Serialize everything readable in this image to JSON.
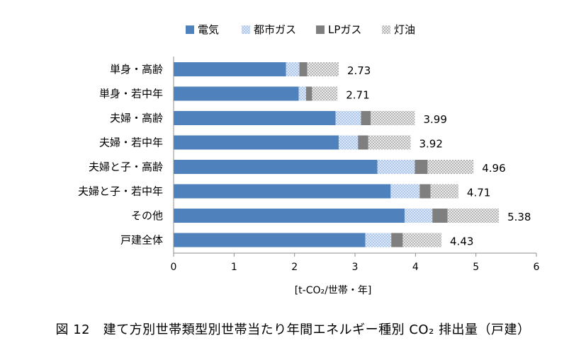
{
  "chart_data": {
    "type": "bar",
    "orientation": "horizontal",
    "stacked": true,
    "categories": [
      "単身・高齢",
      "単身・若中年",
      "夫婦・高齢",
      "夫婦・若中年",
      "夫婦と子・高齢",
      "夫婦と子・若中年",
      "その他",
      "戸建全体"
    ],
    "series": [
      {
        "name": "電気",
        "color": "#4f81bd",
        "pattern": "solid",
        "values": [
          1.86,
          2.07,
          2.68,
          2.73,
          3.37,
          3.59,
          3.82,
          3.17
        ]
      },
      {
        "name": "都市ガス",
        "color": "#c6d9f1",
        "pattern": "dots",
        "values": [
          0.22,
          0.12,
          0.42,
          0.32,
          0.62,
          0.48,
          0.46,
          0.43
        ]
      },
      {
        "name": "LPガス",
        "color": "#7f7f7f",
        "pattern": "solid",
        "values": [
          0.13,
          0.1,
          0.16,
          0.17,
          0.21,
          0.18,
          0.25,
          0.19
        ]
      },
      {
        "name": "灯油",
        "color": "#d9d9d9",
        "pattern": "checker",
        "values": [
          0.52,
          0.42,
          0.73,
          0.7,
          0.76,
          0.46,
          0.85,
          0.64
        ]
      }
    ],
    "totals": [
      2.73,
      2.71,
      3.99,
      3.92,
      4.96,
      4.71,
      5.38,
      4.43
    ],
    "total_labels": [
      "2.73",
      "2.71",
      "3.99",
      "3.92",
      "4.96",
      "4.71",
      "5.38",
      "4.43"
    ],
    "x_ticks": [
      "0",
      "1",
      "2",
      "3",
      "4",
      "5",
      "6"
    ],
    "xlim": [
      0,
      6
    ],
    "xlabel": "[t-CO₂/世帯・年]",
    "ylabel": "",
    "grid": false,
    "legend_position": "top"
  },
  "caption": "図 12　建て方別世帯類型別世帯当たり年間エネルギー種別 CO₂ 排出量（戸建）"
}
